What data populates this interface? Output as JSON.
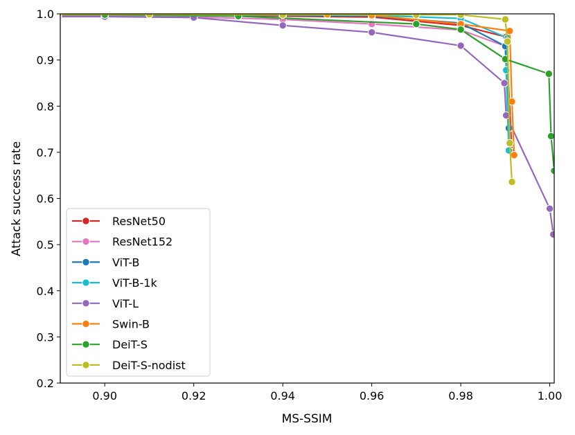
{
  "chart_data": {
    "type": "line",
    "title": "",
    "xlabel": "MS-SSIM",
    "ylabel": "Attack success rate",
    "xlim": [
      0.89,
      1.001
    ],
    "ylim": [
      0.2,
      1.0
    ],
    "xticks": [
      0.9,
      0.92,
      0.94,
      0.96,
      0.98,
      1.0
    ],
    "xtick_labels": [
      "0.90",
      "0.92",
      "0.94",
      "0.96",
      "0.98",
      "1.00"
    ],
    "yticks": [
      0.2,
      0.3,
      0.4,
      0.5,
      0.6,
      0.7,
      0.8,
      0.9,
      1.0
    ],
    "ytick_labels": [
      "0.2",
      "0.3",
      "0.4",
      "0.5",
      "0.6",
      "0.7",
      "0.8",
      "0.9",
      "1.0"
    ],
    "grid": false,
    "legend_position": "lower-left",
    "series": [
      {
        "name": "ResNet50",
        "color": "#d62728",
        "x": [
          0.8895,
          0.9,
          0.92,
          0.94,
          0.96,
          0.98,
          0.9902,
          0.9915
        ],
        "y": [
          0.998,
          0.998,
          0.997,
          0.995,
          0.993,
          0.975,
          0.95,
          0.7
        ]
      },
      {
        "name": "ResNet152",
        "color": "#e377c2",
        "x": [
          0.8895,
          0.9,
          0.92,
          0.94,
          0.96,
          0.98,
          0.99,
          0.9912
        ],
        "y": [
          0.995,
          0.995,
          0.993,
          0.988,
          0.978,
          0.965,
          0.93,
          0.72
        ]
      },
      {
        "name": "ViT-B",
        "color": "#1f77b4",
        "x": [
          0.8895,
          0.9,
          0.92,
          0.94,
          0.96,
          0.98,
          0.99,
          0.9908
        ],
        "y": [
          0.999,
          0.999,
          0.998,
          0.997,
          0.995,
          0.98,
          0.93,
          0.752
        ]
      },
      {
        "name": "ViT-B-1k",
        "color": "#17becf",
        "x": [
          0.8895,
          0.9,
          0.92,
          0.94,
          0.96,
          0.98,
          0.9905,
          0.9902,
          0.9908
        ],
        "y": [
          0.999,
          0.999,
          0.998,
          0.998,
          0.997,
          0.99,
          0.948,
          0.878,
          0.704
        ]
      },
      {
        "name": "ViT-L",
        "color": "#9467bd",
        "x": [
          0.8895,
          0.9,
          0.92,
          0.94,
          0.96,
          0.98,
          0.9898,
          0.9902,
          1.0,
          1.0008
        ],
        "y": [
          0.994,
          0.994,
          0.992,
          0.975,
          0.96,
          0.931,
          0.85,
          0.78,
          0.578,
          0.522
        ]
      },
      {
        "name": "Swin-B",
        "color": "#ff7f0e",
        "x": [
          0.8895,
          0.95,
          0.96,
          0.98,
          0.991,
          0.9915,
          0.992
        ],
        "y": [
          0.999,
          0.999,
          0.997,
          0.978,
          0.963,
          0.81,
          0.694
        ]
      },
      {
        "name": "DeiT-S",
        "color": "#2ca02c",
        "x": [
          0.8895,
          0.9,
          0.93,
          0.97,
          0.98,
          0.99,
          0.9998,
          1.0003,
          1.001
        ],
        "y": [
          0.998,
          0.998,
          0.995,
          0.978,
          0.966,
          0.902,
          0.87,
          0.735,
          0.66
        ]
      },
      {
        "name": "DeiT-S-nodist",
        "color": "#bcbd22",
        "x": [
          0.8895,
          0.91,
          0.94,
          0.97,
          0.98,
          0.99,
          0.9905,
          0.991,
          0.9915
        ],
        "y": [
          0.999,
          0.999,
          0.998,
          0.998,
          0.998,
          0.988,
          0.94,
          0.72,
          0.636
        ]
      }
    ]
  }
}
